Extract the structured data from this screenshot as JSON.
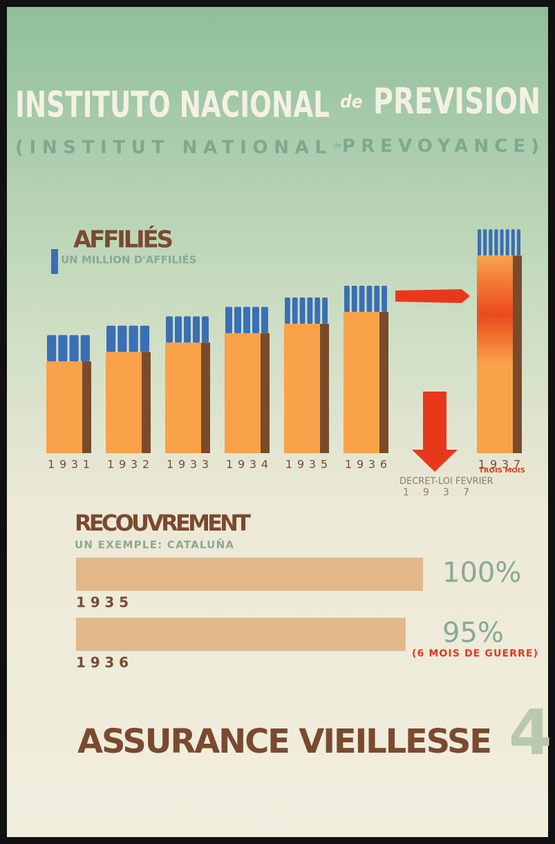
{
  "header": {
    "title": "INSTITUTO NACIONAL",
    "title_de": "de",
    "title_end": "PREVISION",
    "subtitle": "(INSTITUT NATIONAL",
    "subtitle_de": "de",
    "subtitle_end": "PREVOYANCE)"
  },
  "chart_data": [
    {
      "type": "bar",
      "title": "AFFILIÉS",
      "subtitle": "UN MILLION D'AFFILIÉS",
      "categories": [
        "1931",
        "1932",
        "1933",
        "1934",
        "1935",
        "1936",
        "1937"
      ],
      "values": [
        3.9,
        4.3,
        4.7,
        5.1,
        5.5,
        6.0,
        8.4
      ],
      "color": "#f9a24a",
      "shadow_color": "#7a4a2a",
      "figure_color": "#3a6fb5",
      "annotations": {
        "last_note": "TROIS MOIS",
        "decree": "DECRET-LOI FEVRIER",
        "decree_year": "1937"
      }
    },
    {
      "type": "hbar",
      "title": "RECOUVREMENT",
      "subtitle": "UN EXEMPLE: CATALUÑA",
      "categories": [
        "1935",
        "1936"
      ],
      "values": [
        100,
        95
      ],
      "value_labels": [
        "100%",
        "95%"
      ],
      "xlim": [
        0,
        100
      ],
      "color": "#e2b88a",
      "note": "(6 MOIS DE GUERRE)"
    }
  ],
  "footer": {
    "text": "ASSURANCE VIEILLESSE",
    "number": "4"
  }
}
